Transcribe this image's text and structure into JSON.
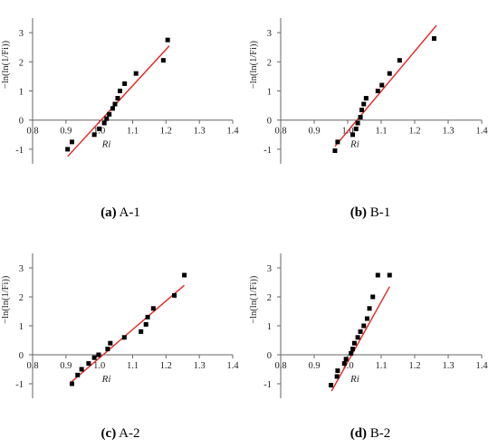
{
  "figure": {
    "panels": [
      {
        "caption_tag": "(a)",
        "caption_text": " A-1"
      },
      {
        "caption_tag": "(b)",
        "caption_text": " B-1"
      },
      {
        "caption_tag": "(c)",
        "caption_text": " A-2"
      },
      {
        "caption_tag": "(d)",
        "caption_text": " B-2"
      }
    ]
  },
  "chart_data": [
    {
      "type": "scatter",
      "title": "",
      "xlabel": "Ri",
      "ylabel": "−ln(ln(1/Fi))",
      "xlim": [
        0.8,
        1.4
      ],
      "ylim": [
        -1.5,
        3.5
      ],
      "xticks": [
        "0.8",
        "0.9",
        "1.0",
        "1.1",
        "1.2",
        "1.3",
        "1.4"
      ],
      "yticks": [
        "-1",
        "0",
        "1",
        "2",
        "3"
      ],
      "grid": false,
      "points": {
        "x": [
          0.905,
          0.918,
          0.985,
          1.0,
          1.015,
          1.022,
          1.03,
          1.04,
          1.047,
          1.055,
          1.062,
          1.076,
          1.11,
          1.192,
          1.205
        ],
        "y": [
          -1.0,
          -0.75,
          -0.5,
          -0.3,
          -0.1,
          0.05,
          0.2,
          0.4,
          0.55,
          0.75,
          1.0,
          1.25,
          1.6,
          2.05,
          2.75
        ]
      },
      "fit_line": {
        "x": [
          0.905,
          1.21
        ],
        "y": [
          -1.25,
          2.55
        ]
      }
    },
    {
      "type": "scatter",
      "title": "",
      "xlabel": "Ri",
      "ylabel": "−ln(ln(1/Fi))",
      "xlim": [
        0.8,
        1.4
      ],
      "ylim": [
        -1.5,
        3.5
      ],
      "xticks": [
        "0.8",
        "0.9",
        "1.0",
        "1.1",
        "1.2",
        "1.3",
        "1.4"
      ],
      "yticks": [
        "-1",
        "0",
        "1",
        "2",
        "3"
      ],
      "grid": false,
      "points": {
        "x": [
          0.962,
          0.97,
          1.015,
          1.025,
          1.03,
          1.038,
          1.042,
          1.048,
          1.055,
          1.09,
          1.102,
          1.125,
          1.155,
          1.258
        ],
        "y": [
          -1.05,
          -0.75,
          -0.5,
          -0.3,
          -0.1,
          0.1,
          0.35,
          0.55,
          0.75,
          1.0,
          1.2,
          1.6,
          2.05,
          2.8
        ]
      },
      "fit_line": {
        "x": [
          0.962,
          1.265
        ],
        "y": [
          -0.9,
          3.25
        ]
      }
    },
    {
      "type": "scatter",
      "title": "",
      "xlabel": "Ri",
      "ylabel": "−ln(ln(1/Fi))",
      "xlim": [
        0.8,
        1.4
      ],
      "ylim": [
        -1.5,
        3.5
      ],
      "xticks": [
        "0.8",
        "0.9",
        "1.0",
        "1.1",
        "1.2",
        "1.3",
        "1.4"
      ],
      "yticks": [
        "-1",
        "0",
        "1",
        "2",
        "3"
      ],
      "grid": false,
      "points": {
        "x": [
          0.918,
          0.935,
          0.947,
          0.968,
          0.985,
          0.998,
          1.025,
          1.033,
          1.075,
          1.125,
          1.14,
          1.145,
          1.162,
          1.225,
          1.255
        ],
        "y": [
          -1.0,
          -0.7,
          -0.5,
          -0.3,
          -0.1,
          0.0,
          0.2,
          0.4,
          0.6,
          0.8,
          1.05,
          1.3,
          1.6,
          2.05,
          2.75
        ]
      },
      "fit_line": {
        "x": [
          0.915,
          1.255
        ],
        "y": [
          -0.95,
          2.4
        ]
      }
    },
    {
      "type": "scatter",
      "title": "",
      "xlabel": "Ri",
      "ylabel": "−ln(ln(1/Fi))",
      "xlim": [
        0.8,
        1.4
      ],
      "ylim": [
        -1.5,
        3.5
      ],
      "xticks": [
        "0.8",
        "0.9",
        "1.0",
        "1.1",
        "1.2",
        "1.3",
        "1.4"
      ],
      "yticks": [
        "-1",
        "0",
        "1",
        "2",
        "3"
      ],
      "grid": false,
      "points": {
        "x": [
          0.95,
          0.968,
          0.97,
          0.99,
          0.995,
          1.01,
          1.015,
          1.02,
          1.03,
          1.038,
          1.048,
          1.058,
          1.065,
          1.075,
          1.09,
          1.125
        ],
        "y": [
          -1.05,
          -0.75,
          -0.55,
          -0.3,
          -0.15,
          0.05,
          0.2,
          0.4,
          0.6,
          0.8,
          1.0,
          1.25,
          1.6,
          2.0,
          2.75,
          2.75
        ]
      },
      "fit_line": {
        "x": [
          0.952,
          1.125
        ],
        "y": [
          -1.25,
          2.35
        ]
      }
    }
  ]
}
